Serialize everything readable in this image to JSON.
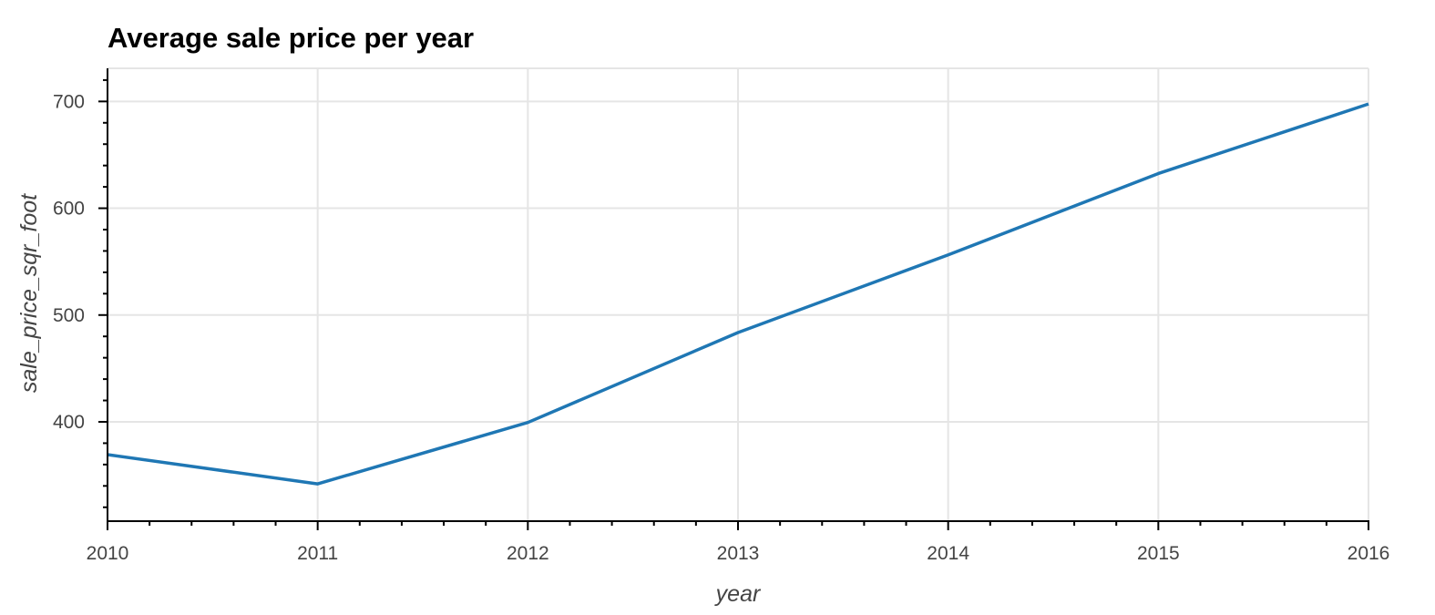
{
  "chart_data": {
    "type": "line",
    "title": "Average sale price per year",
    "xlabel": "year",
    "ylabel": "sale_price_sqr_foot",
    "x": [
      2010,
      2011,
      2012,
      2013,
      2014,
      2015,
      2016
    ],
    "series": [
      {
        "values": [
          369.3,
          341.9,
          399.4,
          483.6,
          556.3,
          632.5,
          697.6
        ],
        "color": "#1f77b4"
      }
    ],
    "xlim": [
      2010,
      2016
    ],
    "ylim": [
      307,
      731
    ],
    "x_ticks": [
      2010,
      2011,
      2012,
      2013,
      2014,
      2015,
      2016
    ],
    "y_ticks": [
      400,
      500,
      600,
      700
    ],
    "x_minor_per_major": 5,
    "y_minor_per_major": 5,
    "grid": true,
    "legend": "none",
    "colors": {
      "grid": "#e5e5e5",
      "axis": "#000000",
      "tick_text": "#444444"
    }
  }
}
